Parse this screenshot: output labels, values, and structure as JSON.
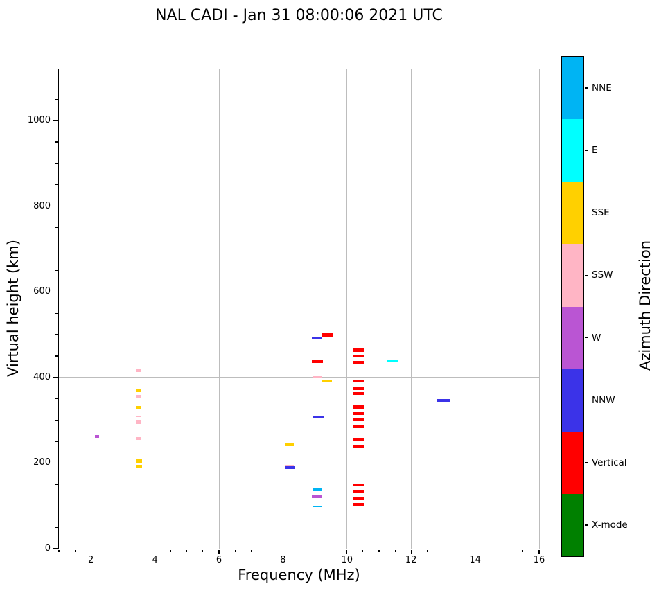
{
  "chart_data": {
    "type": "scatter",
    "title": "NAL CADI - Jan 31 08:00:06 2021 UTC",
    "xlabel": "Frequency (MHz)",
    "ylabel": "Virtual height (km)",
    "xlim": [
      1,
      16
    ],
    "ylim": [
      0,
      1120
    ],
    "x_ticks": [
      2,
      4,
      6,
      8,
      10,
      12,
      14,
      16
    ],
    "y_ticks": [
      0,
      200,
      400,
      600,
      800,
      1000
    ],
    "x_minor_step": 0.5,
    "y_minor_step": 50,
    "grid": true,
    "legend_position": "right-colorbar",
    "marker": {
      "default_w": 15,
      "default_h": 4
    },
    "colorbar": {
      "title": "Azimuth Direction",
      "segments": [
        {
          "label": "NNE",
          "color": "#00B4F3"
        },
        {
          "label": "E",
          "color": "#00FFFF"
        },
        {
          "label": "SSE",
          "color": "#FFD000"
        },
        {
          "label": "SSW",
          "color": "#FFB5C5"
        },
        {
          "label": "W",
          "color": "#BA55D3"
        },
        {
          "label": "NNW",
          "color": "#3B33E8"
        },
        {
          "label": "Vertical",
          "color": "#FF0000"
        },
        {
          "label": "X-mode",
          "color": "#008000"
        }
      ]
    },
    "series": [
      {
        "name": "NNE",
        "color": "#00B4F3",
        "points": [
          {
            "x": 9.07,
            "y": 138,
            "w": 14,
            "h": 4
          },
          {
            "x": 9.07,
            "y": 99,
            "w": 14,
            "h": 2
          }
        ]
      },
      {
        "name": "E",
        "color": "#00FFFF",
        "points": [
          {
            "x": 11.43,
            "y": 438,
            "w": 16,
            "h": 4
          }
        ]
      },
      {
        "name": "SSE",
        "color": "#FFD000",
        "points": [
          {
            "x": 3.49,
            "y": 369,
            "w": 8,
            "h": 4
          },
          {
            "x": 3.49,
            "y": 330,
            "w": 8,
            "h": 4
          },
          {
            "x": 3.49,
            "y": 205,
            "w": 9,
            "h": 5
          },
          {
            "x": 3.49,
            "y": 193,
            "w": 9,
            "h": 4
          },
          {
            "x": 8.21,
            "y": 243,
            "w": 12,
            "h": 4
          },
          {
            "x": 9.38,
            "y": 392,
            "w": 14,
            "h": 3
          }
        ]
      },
      {
        "name": "SSW",
        "color": "#FFB5C5",
        "points": [
          {
            "x": 3.49,
            "y": 416,
            "w": 8,
            "h": 4
          },
          {
            "x": 3.49,
            "y": 356,
            "w": 8,
            "h": 4
          },
          {
            "x": 3.49,
            "y": 309,
            "w": 8,
            "h": 2
          },
          {
            "x": 3.49,
            "y": 296,
            "w": 8,
            "h": 6
          },
          {
            "x": 3.49,
            "y": 257,
            "w": 8,
            "h": 4
          },
          {
            "x": 8.21,
            "y": 194,
            "w": 12,
            "h": 3
          },
          {
            "x": 9.07,
            "y": 400,
            "w": 13,
            "h": 3
          }
        ]
      },
      {
        "name": "W",
        "color": "#BA55D3",
        "points": [
          {
            "x": 2.19,
            "y": 262,
            "w": 6,
            "h": 4
          },
          {
            "x": 9.07,
            "y": 122,
            "w": 15,
            "h": 5
          }
        ]
      },
      {
        "name": "NNW",
        "color": "#3B33E8",
        "points": [
          {
            "x": 8.21,
            "y": 189,
            "w": 13,
            "h": 4
          },
          {
            "x": 9.07,
            "y": 492,
            "w": 15,
            "h": 4
          },
          {
            "x": 9.1,
            "y": 307,
            "w": 16,
            "h": 4
          },
          {
            "x": 13.03,
            "y": 346,
            "w": 19,
            "h": 4
          }
        ]
      },
      {
        "name": "Vertical",
        "color": "#FF0000",
        "points": [
          {
            "x": 9.07,
            "y": 437,
            "w": 16,
            "h": 4
          },
          {
            "x": 9.38,
            "y": 500,
            "w": 16,
            "h": 5
          },
          {
            "x": 10.37,
            "y": 464,
            "w": 16,
            "h": 6
          },
          {
            "x": 10.37,
            "y": 450,
            "w": 16,
            "h": 4
          },
          {
            "x": 10.37,
            "y": 436,
            "w": 16,
            "h": 4
          },
          {
            "x": 10.37,
            "y": 391,
            "w": 16,
            "h": 4
          },
          {
            "x": 10.37,
            "y": 374,
            "w": 16,
            "h": 4
          },
          {
            "x": 10.37,
            "y": 362,
            "w": 16,
            "h": 4
          },
          {
            "x": 10.37,
            "y": 330,
            "w": 16,
            "h": 6
          },
          {
            "x": 10.37,
            "y": 316,
            "w": 16,
            "h": 4
          },
          {
            "x": 10.37,
            "y": 301,
            "w": 16,
            "h": 4
          },
          {
            "x": 10.37,
            "y": 285,
            "w": 16,
            "h": 4
          },
          {
            "x": 10.37,
            "y": 256,
            "w": 16,
            "h": 4
          },
          {
            "x": 10.37,
            "y": 240,
            "w": 16,
            "h": 4
          },
          {
            "x": 10.37,
            "y": 149,
            "w": 16,
            "h": 4
          },
          {
            "x": 10.37,
            "y": 134,
            "w": 16,
            "h": 4
          },
          {
            "x": 10.37,
            "y": 117,
            "w": 16,
            "h": 4
          },
          {
            "x": 10.37,
            "y": 102,
            "w": 16,
            "h": 5
          }
        ]
      },
      {
        "name": "X-mode",
        "color": "#008000",
        "points": []
      }
    ]
  }
}
